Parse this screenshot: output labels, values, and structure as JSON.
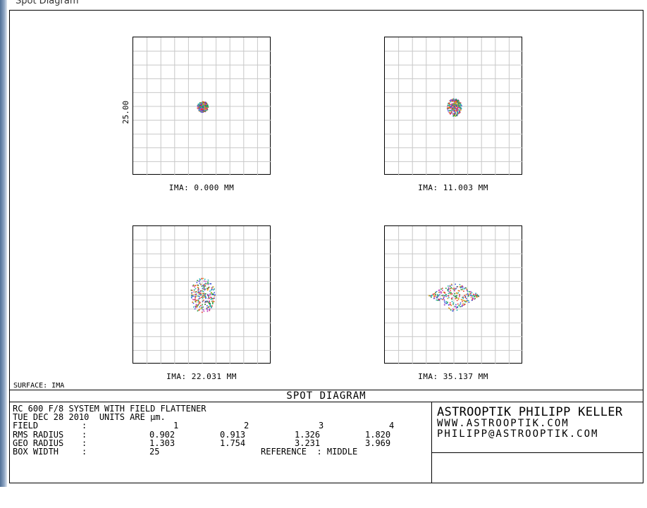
{
  "top_title_partial": "Spot Diagram",
  "surface_label": "SURFACE: IMA",
  "y_axis_label": "25.00",
  "footer": {
    "title": "SPOT  DIAGRAM",
    "line1": "RC 600 F/8 SYSTEM WITH FIELD FLATTENER",
    "line2": "TUE DEC 28 2010  UNITS ARE µm.",
    "field_label": "FIELD",
    "rms_label": "RMS RADIUS",
    "geo_label": "GEO RADIUS",
    "box_label": "BOX WIDTH",
    "fields": [
      "1",
      "2",
      "3",
      "4"
    ],
    "rms": [
      "0.902",
      "0.913",
      "1.326",
      "1.820"
    ],
    "geo": [
      "1.303",
      "1.754",
      "3.231",
      "3.969"
    ],
    "box_width": "25",
    "reference": "REFERENCE  : MIDDLE",
    "company": "ASTROOPTIK PHILIPP KELLER",
    "www": "WWW.ASTROOPTIK.COM",
    "email": "PHILIPP@ASTROOPTIK.COM"
  },
  "colors": {
    "grid": "#c8c8c8",
    "spot_colors": [
      "#1f9d3a",
      "#e8362c",
      "#3a52d8",
      "#e0a020",
      "#c040c0",
      "#20b0b0"
    ]
  },
  "chart_data": [
    {
      "type": "scatter",
      "field": 1,
      "label": "IMA: 0.000 MM",
      "box_width_um": 25,
      "rms_radius_um": 0.902,
      "geo_radius_um": 1.303,
      "shape": "round"
    },
    {
      "type": "scatter",
      "field": 2,
      "label": "IMA: 11.003 MM",
      "box_width_um": 25,
      "rms_radius_um": 0.913,
      "geo_radius_um": 1.754,
      "shape": "teardrop"
    },
    {
      "type": "scatter",
      "field": 3,
      "label": "IMA: 22.031 MM",
      "box_width_um": 25,
      "rms_radius_um": 1.326,
      "geo_radius_um": 3.231,
      "shape": "oval"
    },
    {
      "type": "scatter",
      "field": 4,
      "label": "IMA: 35.137 MM",
      "box_width_um": 25,
      "rms_radius_um": 1.82,
      "geo_radius_um": 3.969,
      "shape": "diamond"
    }
  ]
}
